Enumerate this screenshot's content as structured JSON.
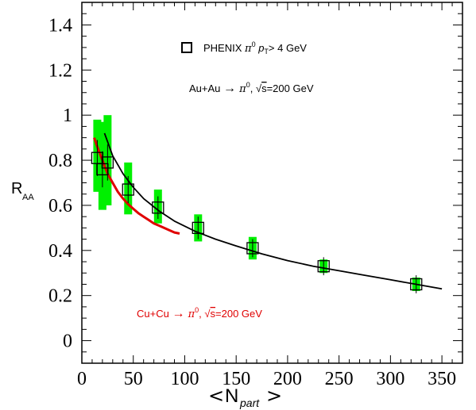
{
  "chart_data": {
    "type": "scatter",
    "xlabel": "N",
    "xlabel_sub": "part",
    "ylabel": "R",
    "ylabel_sub": "AA",
    "xlim": [
      0,
      370
    ],
    "ylim": [
      -0.1,
      1.5
    ],
    "xticks": [
      0,
      50,
      100,
      150,
      200,
      250,
      300,
      350
    ],
    "yticks": [
      0,
      0.2,
      0.4,
      0.6,
      0.8,
      1,
      1.2,
      1.4
    ],
    "ytick_labels": [
      "0",
      "0.2",
      "0.4",
      "0.6",
      "0.8",
      "1",
      "1.2",
      "1.4"
    ],
    "legend": {
      "label": "PHENIX π⁰ pₜ> 4 GeV",
      "label_main": "PHENIX ",
      "label_pi": "π",
      "label_sup": "0",
      "label_p": " p",
      "label_sub": "T",
      "label_rest": "> 4 GeV",
      "placement": "top-center",
      "marker": "open-square"
    },
    "annotations": {
      "auau": {
        "a": "Au+Au ",
        "arrow": "→",
        "b": " π",
        "sup": "0",
        "c": ", ",
        "sqrt": "√",
        "s": "s",
        "d": "=200 GeV"
      },
      "cucu": {
        "a": "Cu+Cu ",
        "arrow": "→",
        "b": " π",
        "sup": "0",
        "c": ", ",
        "sqrt": "√",
        "s": "s",
        "d": "=200 GeV",
        "color": "#e00000"
      }
    },
    "series": [
      {
        "marker": "open-square",
        "color": "#000000",
        "points": [
          {
            "x": 15,
            "y": 0.81,
            "err": 0.08,
            "sys_lo": 0.66,
            "sys_hi": 0.98
          },
          {
            "x": 20,
            "y": 0.76,
            "err": 0.08,
            "sys_lo": 0.58,
            "sys_hi": 0.97
          },
          {
            "x": 25,
            "y": 0.79,
            "err": 0.08,
            "sys_lo": 0.6,
            "sys_hi": 1.0
          },
          {
            "x": 45,
            "y": 0.67,
            "err": 0.06,
            "sys_lo": 0.56,
            "sys_hi": 0.79
          },
          {
            "x": 74,
            "y": 0.59,
            "err": 0.05,
            "sys_lo": 0.52,
            "sys_hi": 0.67
          },
          {
            "x": 113,
            "y": 0.5,
            "err": 0.05,
            "sys_lo": 0.44,
            "sys_hi": 0.56
          },
          {
            "x": 166,
            "y": 0.41,
            "err": 0.04,
            "sys_lo": 0.36,
            "sys_hi": 0.46
          },
          {
            "x": 235,
            "y": 0.33,
            "err": 0.04,
            "sys_lo": 0.3,
            "sys_hi": 0.36
          },
          {
            "x": 325,
            "y": 0.25,
            "err": 0.04,
            "sys_lo": 0.22,
            "sys_hi": 0.28
          }
        ]
      }
    ],
    "curves": [
      {
        "color": "#000000",
        "x": [
          22,
          30,
          40,
          50,
          60,
          75,
          90,
          110,
          130,
          150,
          175,
          200,
          225,
          250,
          275,
          300,
          325,
          350
        ],
        "y": [
          0.92,
          0.82,
          0.74,
          0.68,
          0.63,
          0.575,
          0.53,
          0.485,
          0.45,
          0.42,
          0.385,
          0.355,
          0.33,
          0.31,
          0.29,
          0.27,
          0.25,
          0.23
        ]
      },
      {
        "color": "#e00000",
        "x": [
          12,
          15,
          20,
          25,
          30,
          35,
          40,
          45,
          50,
          55,
          60,
          65,
          70,
          75,
          80,
          85,
          90,
          95
        ],
        "y": [
          0.9,
          0.86,
          0.8,
          0.74,
          0.7,
          0.66,
          0.63,
          0.605,
          0.585,
          0.565,
          0.55,
          0.535,
          0.52,
          0.51,
          0.5,
          0.49,
          0.48,
          0.475
        ]
      }
    ],
    "grid": false
  }
}
